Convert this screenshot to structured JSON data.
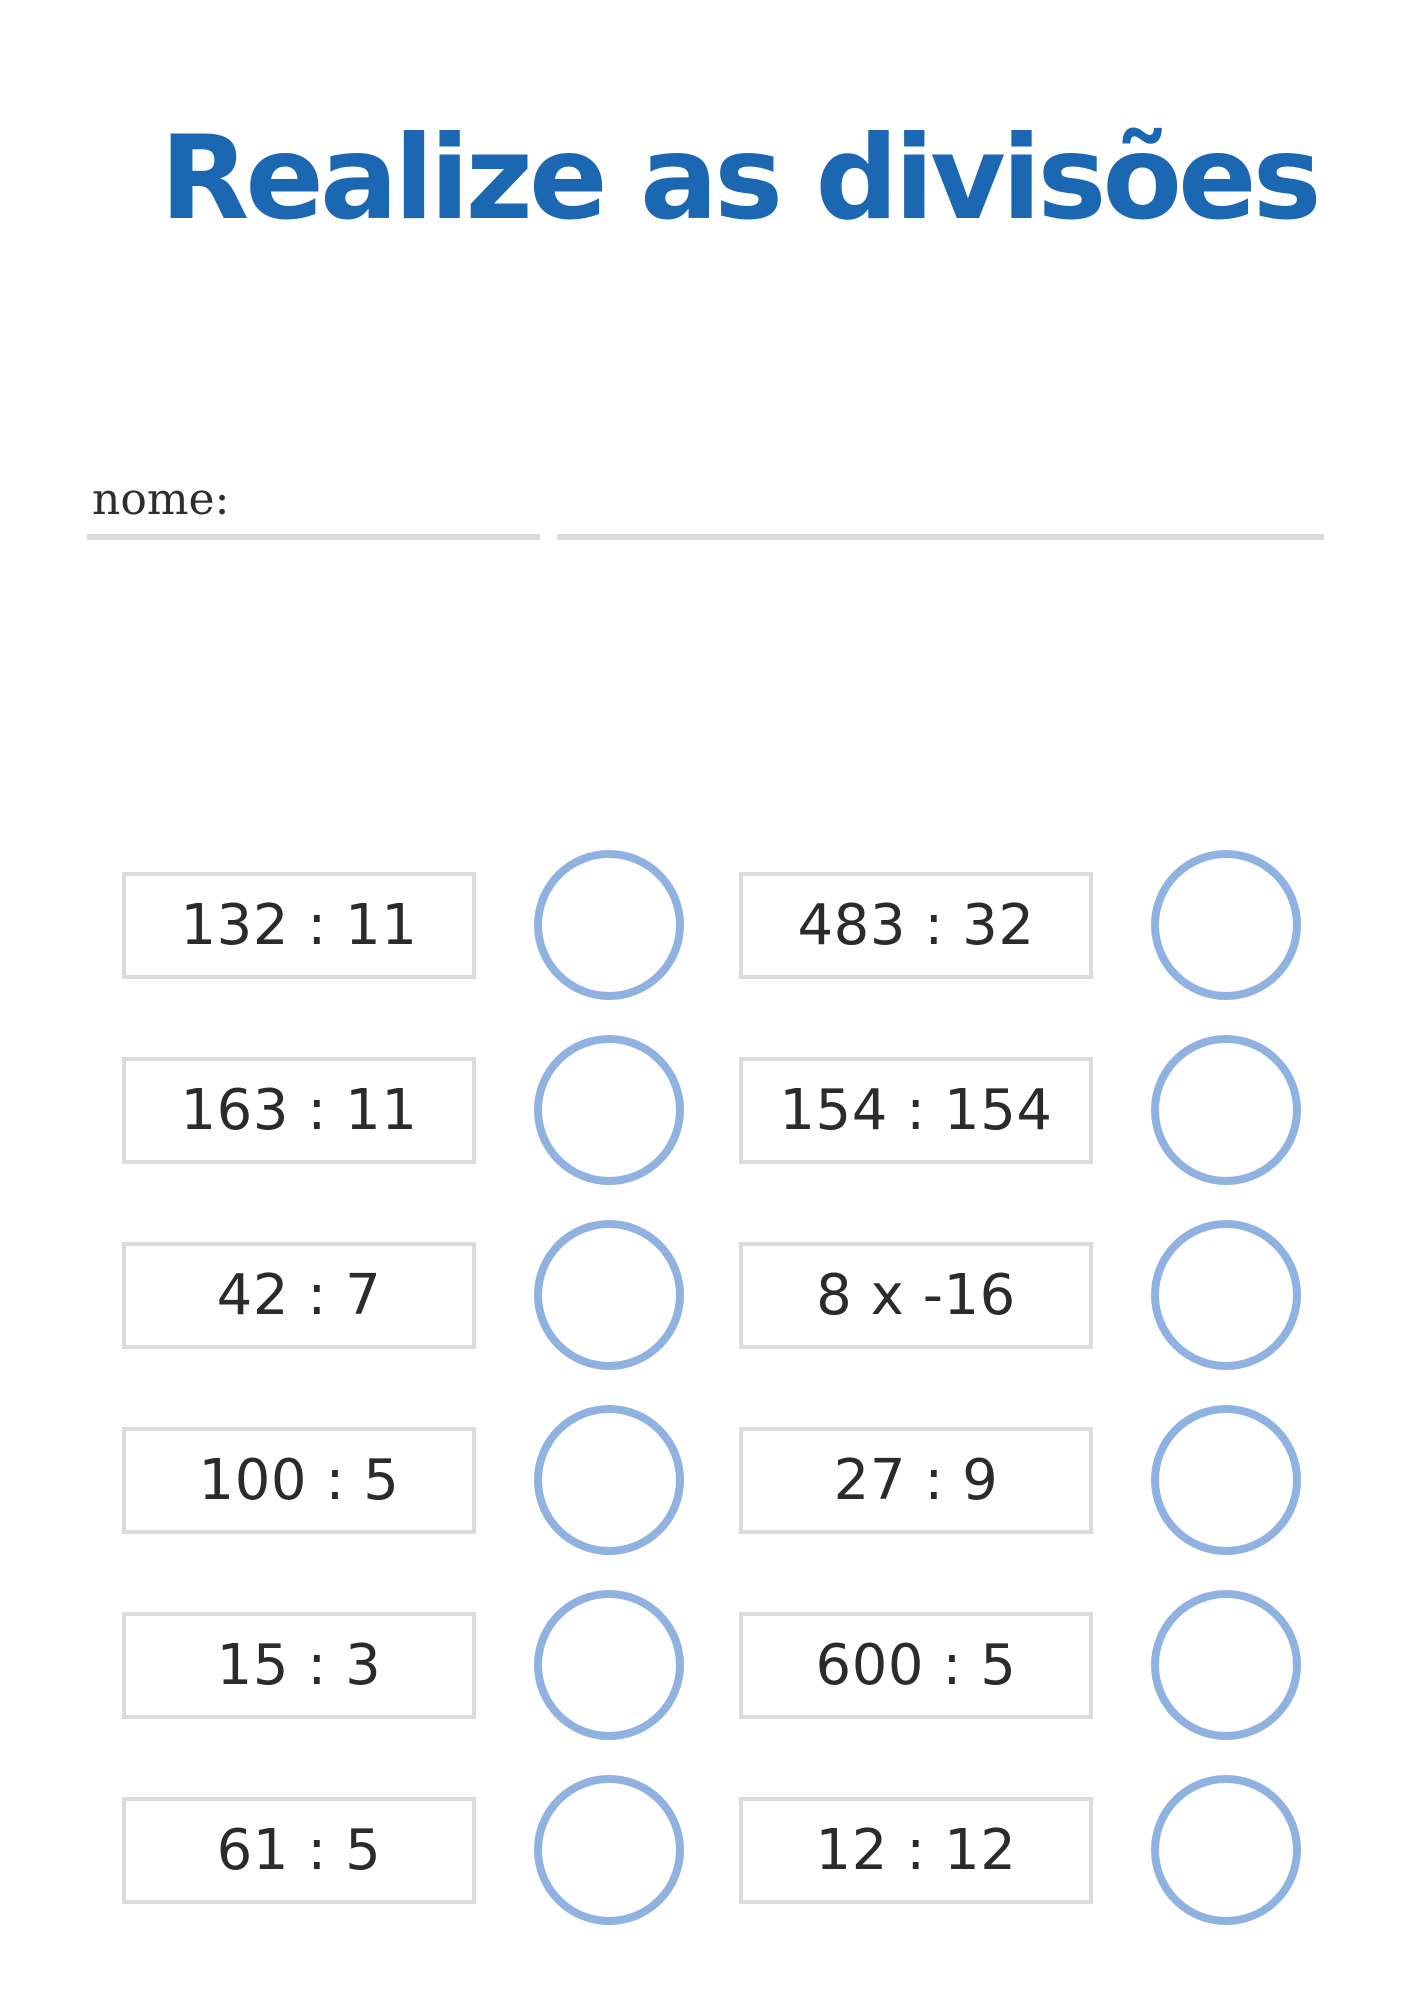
{
  "page": {
    "title": "Realize as divisões"
  },
  "name_field": {
    "label": "nome:"
  },
  "problems": {
    "left_column": [
      "132 : 11",
      "163 : 11",
      "42 : 7",
      "100 : 5",
      "15 : 3",
      "61 : 5"
    ],
    "right_column": [
      "483 : 32",
      "154 : 154",
      "8 x -16",
      "27 : 9",
      "600 : 5",
      "12 : 12"
    ]
  },
  "colors": {
    "title-blue": "#1b67b2",
    "circle-blue": "#8fb2e1",
    "box-border": "#dcdcdc",
    "text-dark": "#2b2b2b",
    "line-gray": "#dbdbdb"
  }
}
